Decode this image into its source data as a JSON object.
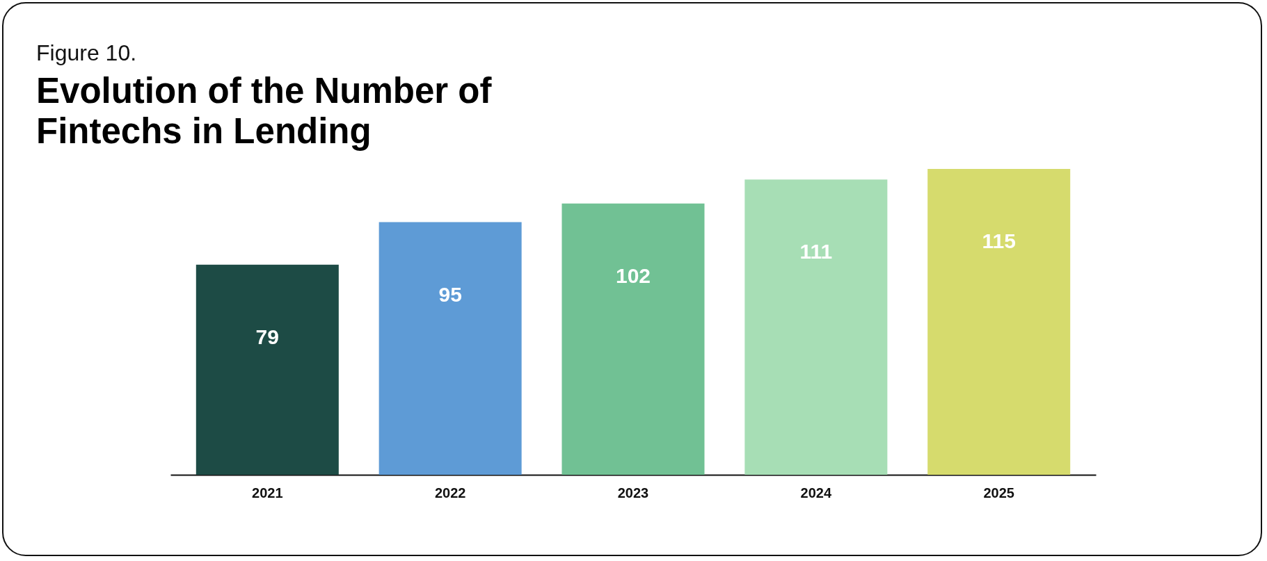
{
  "chart_data": {
    "type": "bar",
    "subtitle": "Figure 10.",
    "title": "Evolution of the Number of Fintechs in Lending",
    "categories": [
      "2021",
      "2022",
      "2023",
      "2024",
      "2025"
    ],
    "values": [
      79,
      95,
      102,
      111,
      115
    ],
    "colors": [
      "#1d4b45",
      "#5e9bd6",
      "#71c194",
      "#a7deb5",
      "#d6db6d"
    ],
    "data_labels": true
  }
}
